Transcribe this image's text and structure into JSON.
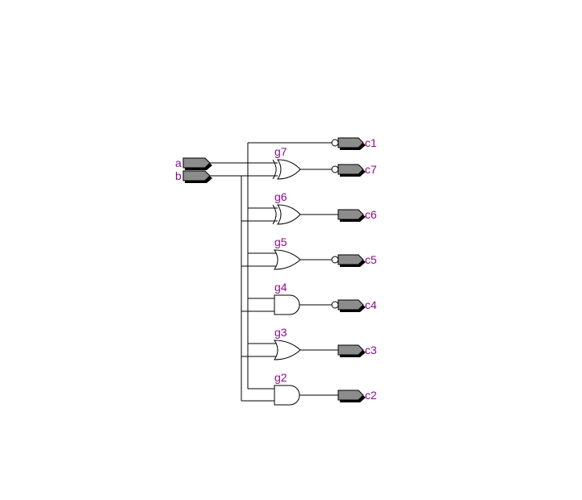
{
  "colors": {
    "label": "#8b0d8b",
    "port_fill": "#8c8c8c",
    "wire": "#000000"
  },
  "inputs": [
    {
      "name": "a"
    },
    {
      "name": "b"
    }
  ],
  "outputs": [
    {
      "name": "c1",
      "inverted": true
    },
    {
      "name": "c7",
      "inverted": true
    },
    {
      "name": "c6",
      "inverted": false
    },
    {
      "name": "c5",
      "inverted": true
    },
    {
      "name": "c4",
      "inverted": true
    },
    {
      "name": "c3",
      "inverted": false
    },
    {
      "name": "c2",
      "inverted": false
    }
  ],
  "gates": [
    {
      "name": "g7",
      "type": "xor",
      "output": "c7"
    },
    {
      "name": "g6",
      "type": "xor",
      "output": "c6"
    },
    {
      "name": "g5",
      "type": "or",
      "output": "c5"
    },
    {
      "name": "g4",
      "type": "and",
      "output": "c4"
    },
    {
      "name": "g3",
      "type": "or",
      "output": "c3"
    },
    {
      "name": "g2",
      "type": "and",
      "output": "c2"
    }
  ]
}
